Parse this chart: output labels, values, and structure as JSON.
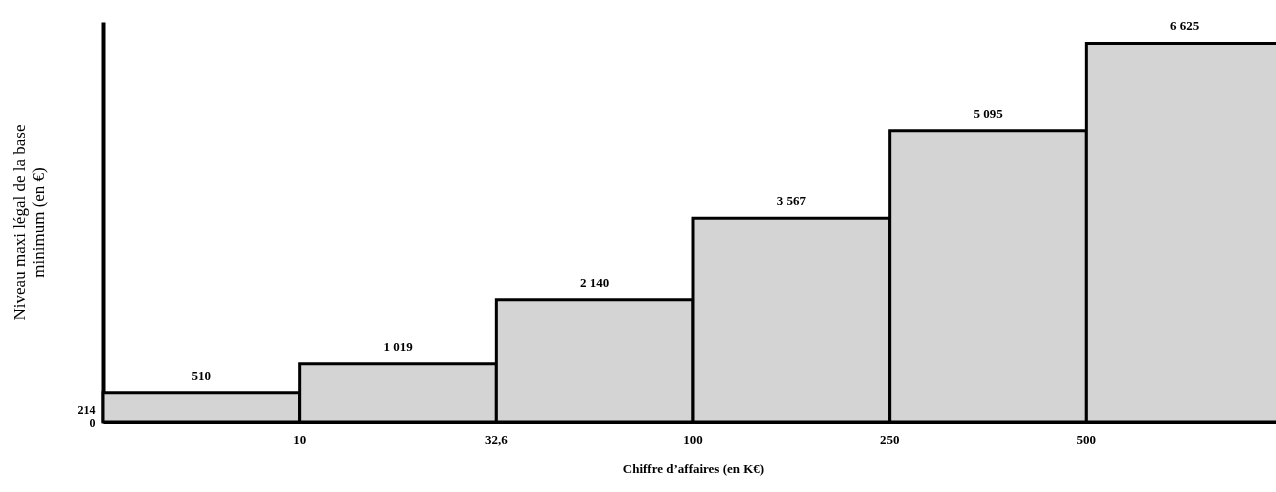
{
  "chart_data": {
    "type": "bar",
    "xlabel": "Chiffre d’affaires (en K€)",
    "ylabel": "Niveau maxi légal de la base minimum (en €)",
    "categories": [
      null,
      null,
      null,
      null,
      null,
      null
    ],
    "values": [
      510,
      1019,
      2140,
      3567,
      5095,
      6625
    ],
    "color": "#d4d4d4",
    "data_labels": true,
    "ylim": [
      0,
      7000
    ],
    "yticks": [
      0,
      214
    ],
    "annotations": [
      "10",
      "32,6",
      "100",
      "250",
      "500"
    ]
  }
}
